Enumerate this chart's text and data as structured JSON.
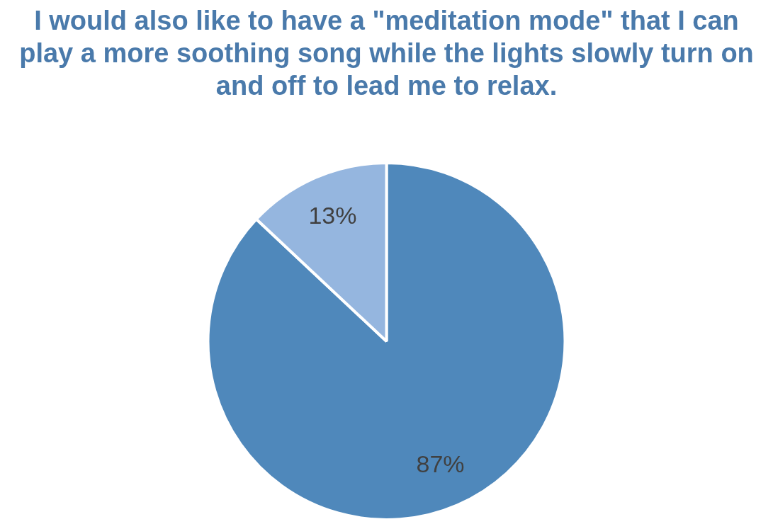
{
  "chart_data": {
    "type": "pie",
    "title": "I would also like to have a \"meditation mode\" that I can play a more soothing song while the lights slowly turn on and off to lead me to relax.",
    "categories": [
      null,
      null
    ],
    "values": [
      87,
      13
    ],
    "colors": [
      "#4f88bb",
      "#95b6df"
    ],
    "value_labels": [
      "87%",
      "13%"
    ],
    "legend": false
  }
}
